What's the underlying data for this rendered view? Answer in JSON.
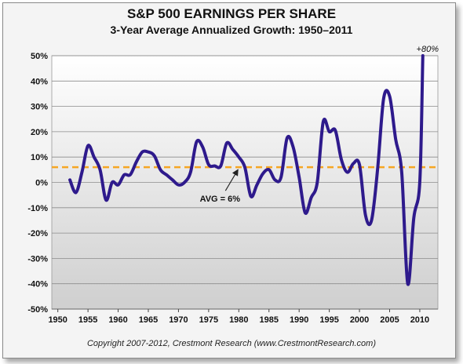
{
  "chart_data": {
    "type": "line",
    "title": "S&P 500 EARNINGS PER SHARE",
    "subtitle": "3-Year Average Annualized Growth: 1950–2011",
    "xlabel": "",
    "ylabel": "",
    "xlim": [
      1949,
      2013
    ],
    "ylim": [
      -50,
      50
    ],
    "xticks": [
      1950,
      1955,
      1960,
      1965,
      1970,
      1975,
      1980,
      1985,
      1990,
      1995,
      2000,
      2005,
      2010
    ],
    "yticks": [
      -50,
      -40,
      -30,
      -20,
      -10,
      0,
      10,
      20,
      30,
      40,
      50
    ],
    "y_unit": "%",
    "grid": "horizontal",
    "series": [
      {
        "color": "#2e1a8c",
        "x": [
          1952,
          1953,
          1954,
          1955,
          1956,
          1957,
          1958,
          1959,
          1960,
          1961,
          1962,
          1963,
          1964,
          1965,
          1966,
          1967,
          1968,
          1969,
          1970,
          1971,
          1972,
          1973,
          1974,
          1975,
          1976,
          1977,
          1978,
          1979,
          1980,
          1981,
          1982,
          1983,
          1984,
          1985,
          1986,
          1987,
          1988,
          1989,
          1990,
          1991,
          1992,
          1993,
          1994,
          1995,
          1996,
          1997,
          1998,
          1999,
          2000,
          2001,
          2002,
          2003,
          2004,
          2005,
          2006,
          2007,
          2008,
          2009,
          2010,
          2010.5
        ],
        "values": [
          1,
          -4,
          4,
          14.5,
          10,
          5,
          -7,
          0,
          -1,
          3,
          3,
          8,
          12,
          12,
          10.5,
          5,
          3,
          1,
          -1,
          0,
          4,
          16,
          14,
          7,
          6.5,
          6.5,
          15.5,
          13,
          10,
          6,
          -5.5,
          -1,
          3.5,
          5,
          1,
          2,
          17.5,
          14,
          2,
          -12,
          -6,
          0,
          24,
          20,
          20.5,
          9,
          4,
          7.5,
          7,
          -13,
          -15,
          5,
          33,
          34,
          17,
          4,
          -40,
          -14,
          0,
          50
        ]
      },
      {
        "name": "AVG = 6%",
        "type": "hline",
        "value": 6,
        "color": "#f5a623"
      }
    ],
    "annotations": [
      {
        "text": "AVG = 6%",
        "x": 1980,
        "y": 6
      },
      {
        "text": "+80%",
        "x": 2010.5,
        "y": 50
      }
    ]
  },
  "copyright": "Copyright 2007-2012, Crestmont Research (www.CrestmontResearch.com)"
}
